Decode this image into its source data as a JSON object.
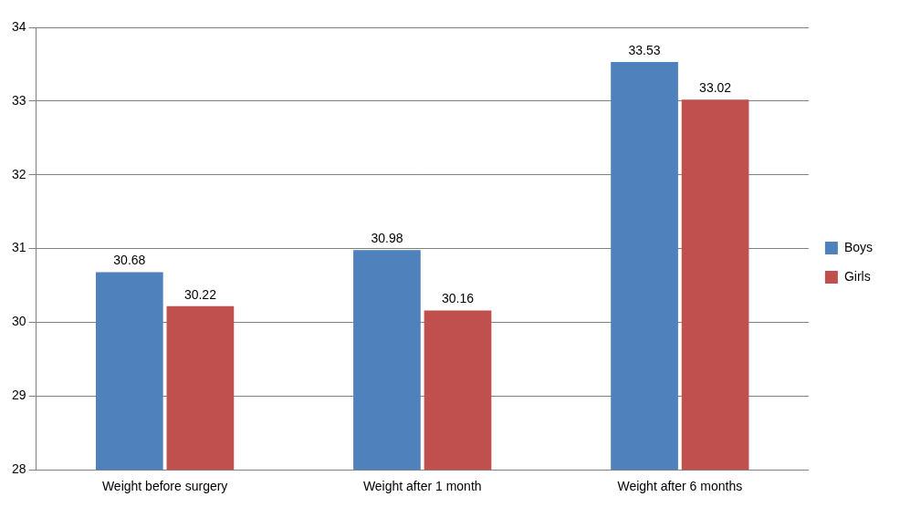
{
  "chart_data": {
    "type": "bar",
    "categories": [
      "Weight before surgery",
      "Weight after 1 month",
      "Weight after 6 months"
    ],
    "series": [
      {
        "name": "Boys",
        "color": "#4f81bd",
        "values": [
          30.68,
          30.98,
          33.53
        ]
      },
      {
        "name": "Girls",
        "color": "#c0504d",
        "values": [
          30.22,
          30.16,
          33.02
        ]
      }
    ],
    "ylim": [
      28,
      34
    ],
    "yticks": [
      28,
      29,
      30,
      31,
      32,
      33,
      34
    ],
    "grid": true,
    "legend": "right",
    "data_labels": true
  }
}
